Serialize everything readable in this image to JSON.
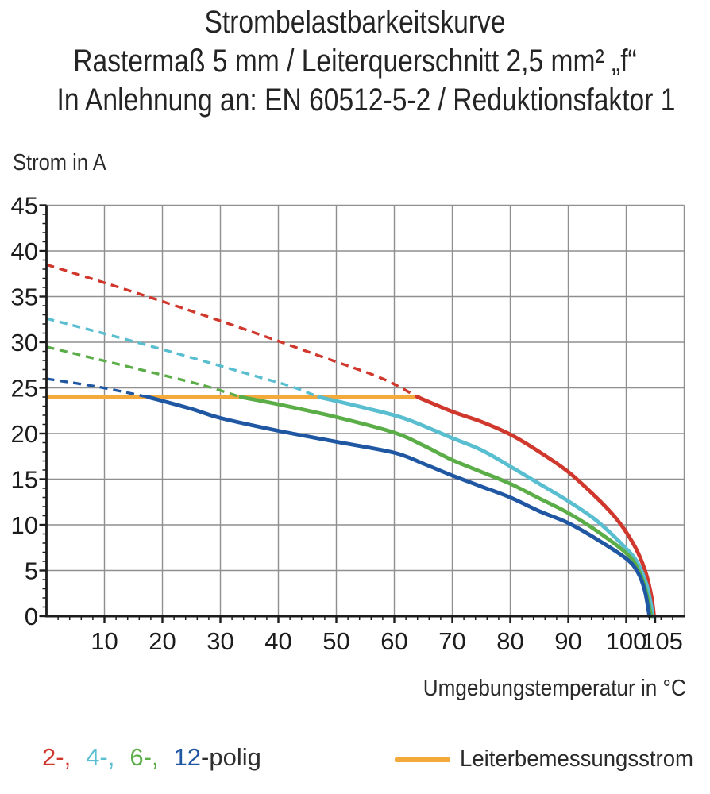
{
  "title": {
    "line1": "Strombelastbarkeitskurve",
    "line2": "Rastermaß 5 mm / Leiterquerschnitt 2,5 mm² „f“",
    "line3": "In Anlehnung an: EN 60512-5-2 / Reduktionsfaktor 1"
  },
  "chart_data": {
    "type": "line",
    "title": "Strombelastbarkeitskurve",
    "xlabel": "Umgebungstemperatur in °C",
    "ylabel": "Strom in A",
    "xlim": [
      0,
      110
    ],
    "ylim": [
      0,
      45
    ],
    "grid": true,
    "x_major_ticks": [
      10,
      20,
      30,
      40,
      50,
      60,
      70,
      80,
      90,
      100,
      105
    ],
    "y_major_ticks": [
      0,
      5,
      10,
      15,
      20,
      25,
      30,
      35,
      40,
      45
    ],
    "x_minor_step": 2,
    "y_minor_step": 1,
    "series": [
      {
        "name": "2-polig",
        "color": "#d0382d",
        "dashed": [
          [
            0,
            38.5
          ],
          [
            16,
            35.3
          ],
          [
            32,
            31.9
          ],
          [
            48,
            28.3
          ],
          [
            58,
            26.0
          ],
          [
            64,
            24
          ]
        ],
        "solid": [
          [
            64,
            24
          ],
          [
            70,
            22.4
          ],
          [
            75,
            21.3
          ],
          [
            80,
            19.9
          ],
          [
            85,
            18.0
          ],
          [
            90,
            15.8
          ],
          [
            95,
            12.9
          ],
          [
            98,
            10.9
          ],
          [
            100,
            9.2
          ],
          [
            102,
            7.0
          ],
          [
            103.5,
            4.5
          ],
          [
            104.4,
            2.0
          ],
          [
            104.8,
            0
          ]
        ]
      },
      {
        "name": "4-polig",
        "color": "#58bed0",
        "dashed": [
          [
            0,
            32.6
          ],
          [
            12,
            30.6
          ],
          [
            24,
            28.5
          ],
          [
            36,
            26.3
          ],
          [
            42,
            25.2
          ],
          [
            47,
            24
          ]
        ],
        "solid": [
          [
            47,
            24
          ],
          [
            55,
            22.8
          ],
          [
            62,
            21.6
          ],
          [
            70,
            19.5
          ],
          [
            75,
            18.2
          ],
          [
            80,
            16.4
          ],
          [
            85,
            14.5
          ],
          [
            90,
            12.6
          ],
          [
            95,
            10.4
          ],
          [
            100,
            7.4
          ],
          [
            102,
            5.8
          ],
          [
            103.5,
            3.5
          ],
          [
            104.2,
            1.5
          ],
          [
            104.6,
            0
          ]
        ]
      },
      {
        "name": "6-polig",
        "color": "#5bad48",
        "dashed": [
          [
            0,
            29.5
          ],
          [
            11,
            27.8
          ],
          [
            22,
            26.1
          ],
          [
            28,
            25.1
          ],
          [
            33.5,
            24
          ]
        ],
        "solid": [
          [
            33.5,
            24
          ],
          [
            40,
            23.2
          ],
          [
            50,
            21.8
          ],
          [
            60,
            20.1
          ],
          [
            65,
            18.7
          ],
          [
            70,
            17.1
          ],
          [
            75,
            15.8
          ],
          [
            80,
            14.5
          ],
          [
            85,
            12.9
          ],
          [
            90,
            11.3
          ],
          [
            95,
            9.3
          ],
          [
            100,
            6.9
          ],
          [
            102,
            5.2
          ],
          [
            103.3,
            3.0
          ],
          [
            104.3,
            0
          ]
        ]
      },
      {
        "name": "12-polig",
        "color": "#1f57a3",
        "dashed": [
          [
            0,
            26.0
          ],
          [
            9,
            25.1
          ],
          [
            17.5,
            24
          ]
        ],
        "solid": [
          [
            17.5,
            24
          ],
          [
            25,
            22.7
          ],
          [
            30,
            21.7
          ],
          [
            40,
            20.3
          ],
          [
            50,
            19.1
          ],
          [
            60,
            17.9
          ],
          [
            65,
            16.7
          ],
          [
            70,
            15.4
          ],
          [
            75,
            14.2
          ],
          [
            80,
            13.0
          ],
          [
            85,
            11.5
          ],
          [
            90,
            10.2
          ],
          [
            95,
            8.4
          ],
          [
            100,
            6.3
          ],
          [
            102,
            4.8
          ],
          [
            103.2,
            2.8
          ],
          [
            104,
            0
          ]
        ]
      }
    ],
    "rated_current_line": {
      "label": "Leiterbemessungsstrom",
      "value": 24,
      "x_start": 0,
      "x_end": 64.5,
      "color": "#f4a93b"
    }
  },
  "legend": {
    "pole_items": [
      {
        "label": "2-,",
        "color": "#d0382d"
      },
      {
        "label": "4-,",
        "color": "#58bed0"
      },
      {
        "label": "6-,",
        "color": "#5bad48"
      },
      {
        "label": "12",
        "color": "#1f57a3"
      }
    ],
    "pole_suffix": "-polig",
    "rated_label": "Leiterbemessungsstrom"
  },
  "colors": {
    "grid": "#8f8f8f",
    "axis": "#1c1c1c",
    "text": "#2a2a2a"
  }
}
